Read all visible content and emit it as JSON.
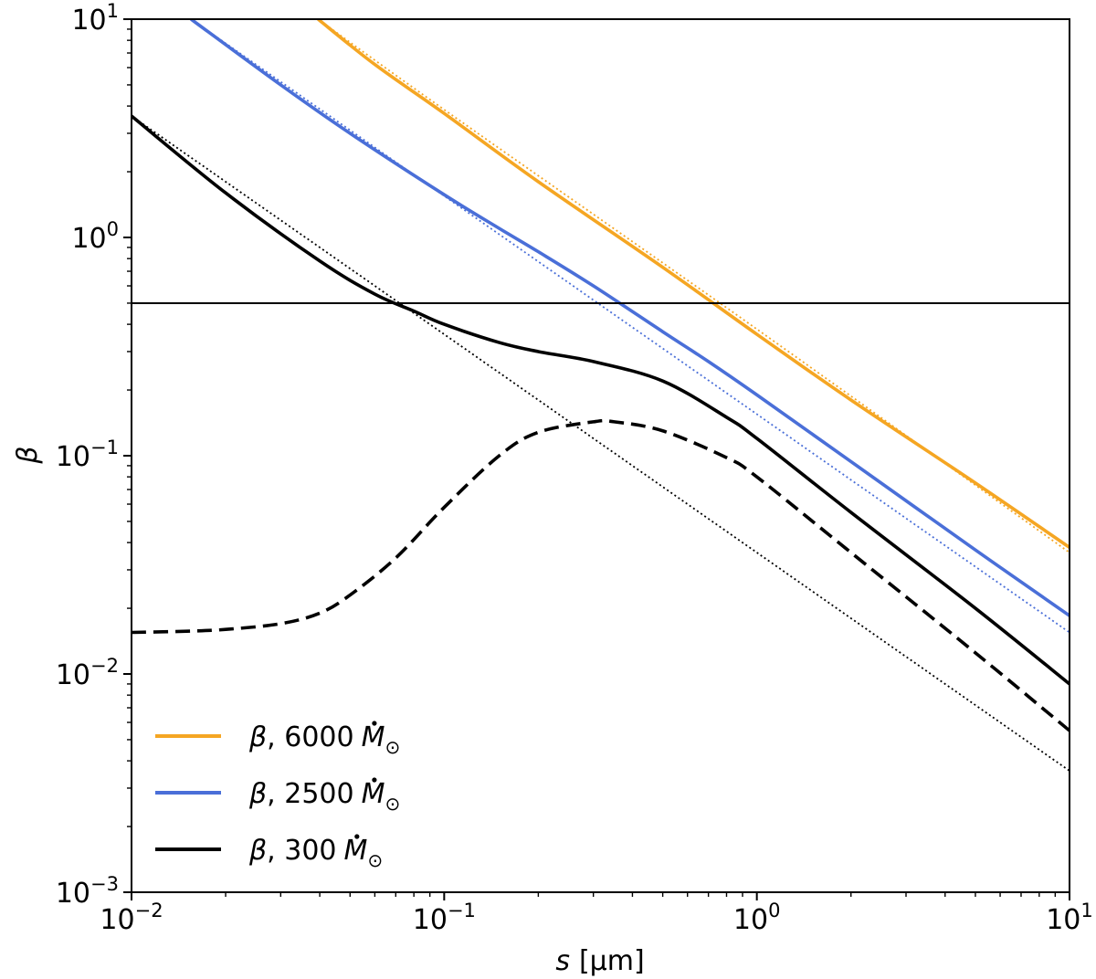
{
  "chart_data": {
    "type": "line",
    "title": "",
    "xscale": "log",
    "yscale": "log",
    "xlim": [
      0.01,
      10
    ],
    "ylim": [
      0.001,
      10
    ],
    "xlabel": {
      "symbol": "s",
      "unit": "[μm]"
    },
    "ylabel": "β",
    "grid": false,
    "legend_position": "lower-left",
    "x_ticks": [
      {
        "value": 0.01,
        "base": "10",
        "exp": "−2"
      },
      {
        "value": 0.1,
        "base": "10",
        "exp": "−1"
      },
      {
        "value": 1,
        "base": "10",
        "exp": "0"
      },
      {
        "value": 10,
        "base": "10",
        "exp": "1"
      }
    ],
    "y_ticks": [
      {
        "value": 0.001,
        "base": "10",
        "exp": "−3"
      },
      {
        "value": 0.01,
        "base": "10",
        "exp": "−2"
      },
      {
        "value": 0.1,
        "base": "10",
        "exp": "−1"
      },
      {
        "value": 1,
        "base": "10",
        "exp": "0"
      },
      {
        "value": 10,
        "base": "10",
        "exp": "1"
      }
    ],
    "hline": {
      "y": 0.5,
      "color": "#000000"
    },
    "series": [
      {
        "name": "beta-6000-solid",
        "legend": {
          "beta": "β",
          "value": "6000",
          "symbol": "M",
          "sub": "⊙"
        },
        "color": "#f5a623",
        "style": "solid",
        "x": [
          0.0395,
          0.06,
          0.1,
          0.2,
          0.5,
          1,
          2,
          5,
          10
        ],
        "y": [
          10,
          6.2,
          3.7,
          1.8,
          0.73,
          0.36,
          0.18,
          0.075,
          0.038
        ]
      },
      {
        "name": "beta-6000-dotted",
        "color": "#f5a623",
        "style": "dotted",
        "x": [
          0.0395,
          0.1,
          1,
          10
        ],
        "y": [
          10,
          3.85,
          0.38,
          0.036
        ]
      },
      {
        "name": "beta-2500-solid",
        "legend": {
          "beta": "β",
          "value": "2500",
          "symbol": "M",
          "sub": "⊙"
        },
        "color": "#4a6fd8",
        "style": "solid",
        "x": [
          0.0155,
          0.03,
          0.05,
          0.1,
          0.15,
          0.2,
          0.3,
          0.5,
          0.7,
          1,
          2,
          5,
          10
        ],
        "y": [
          10,
          5.0,
          3.0,
          1.57,
          1.1,
          0.86,
          0.6,
          0.37,
          0.27,
          0.19,
          0.094,
          0.037,
          0.0185
        ]
      },
      {
        "name": "beta-2500-dotted",
        "color": "#4a6fd8",
        "style": "dotted",
        "x": [
          0.0155,
          0.1,
          1,
          10
        ],
        "y": [
          10,
          1.55,
          0.155,
          0.0155
        ]
      },
      {
        "name": "beta-300-solid",
        "legend": {
          "beta": "β",
          "value": "300",
          "symbol": "M",
          "sub": "⊙"
        },
        "color": "#000000",
        "style": "solid",
        "x": [
          0.01,
          0.02,
          0.04,
          0.06,
          0.08,
          0.1,
          0.15,
          0.2,
          0.3,
          0.5,
          0.8,
          1,
          2,
          5,
          10
        ],
        "y": [
          3.6,
          1.6,
          0.78,
          0.55,
          0.46,
          0.4,
          0.33,
          0.3,
          0.27,
          0.22,
          0.15,
          0.12,
          0.055,
          0.02,
          0.009
        ]
      },
      {
        "name": "beta-300-dotted",
        "color": "#000000",
        "style": "dotted",
        "x": [
          0.01,
          0.1,
          1,
          10
        ],
        "y": [
          3.6,
          0.36,
          0.036,
          0.0036
        ]
      },
      {
        "name": "beta-300-dashed",
        "color": "#000000",
        "style": "dashed",
        "x": [
          0.01,
          0.015,
          0.02,
          0.03,
          0.04,
          0.05,
          0.07,
          0.1,
          0.15,
          0.2,
          0.3,
          0.35,
          0.5,
          0.8,
          1,
          2,
          5,
          10
        ],
        "y": [
          0.0155,
          0.0157,
          0.016,
          0.017,
          0.019,
          0.023,
          0.034,
          0.058,
          0.1,
          0.128,
          0.143,
          0.143,
          0.13,
          0.098,
          0.08,
          0.036,
          0.0125,
          0.0055
        ]
      }
    ]
  }
}
